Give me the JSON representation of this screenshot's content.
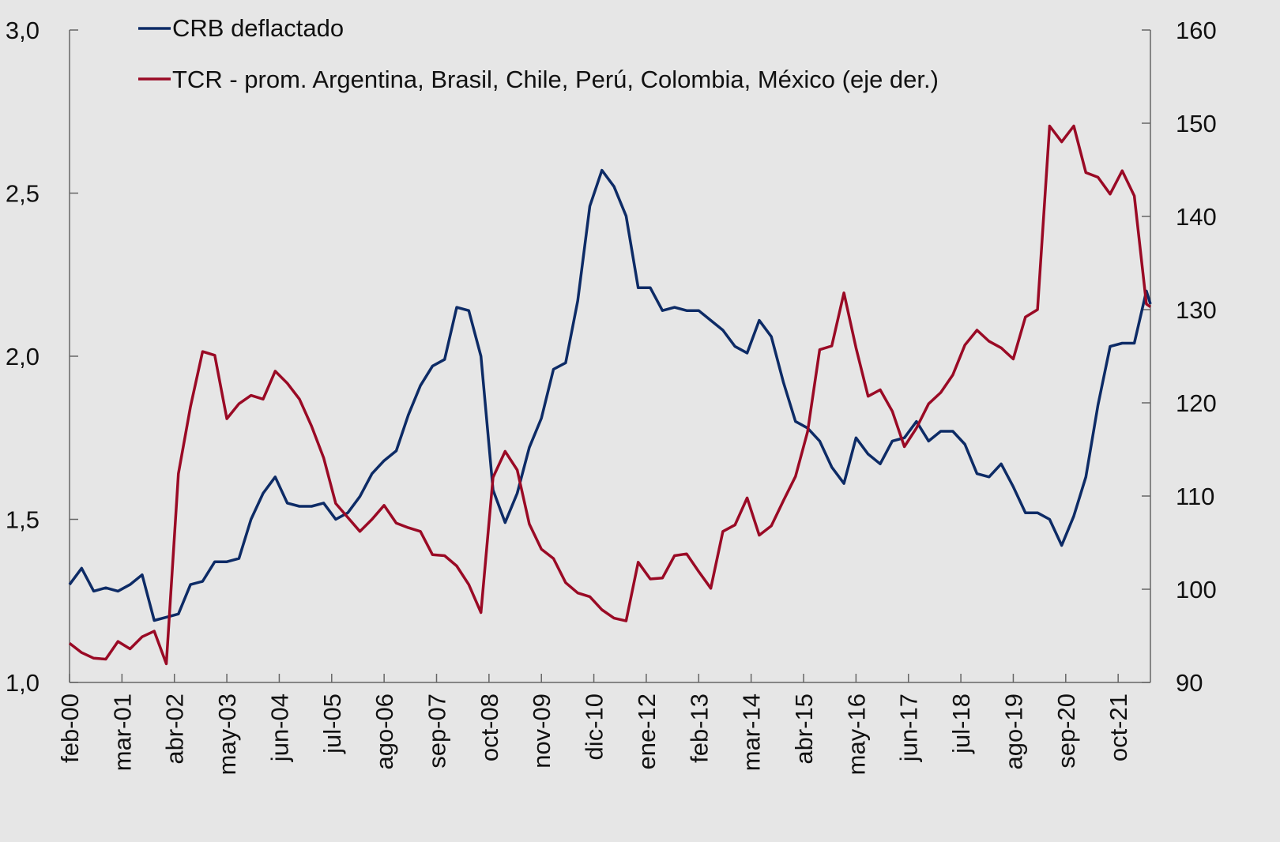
{
  "chart_data": {
    "type": "line",
    "title": "",
    "xlabel": "",
    "ylabel": "",
    "y2label": "",
    "xlim": [
      "2000-02",
      "2022-06"
    ],
    "ylim": [
      1.0,
      3.0
    ],
    "y2lim": [
      90,
      160
    ],
    "grid": false,
    "legend_position": "top-left",
    "x_tick_labels": [
      "feb-00",
      "mar-01",
      "abr-02",
      "may-03",
      "jun-04",
      "jul-05",
      "ago-06",
      "sep-07",
      "oct-08",
      "nov-09",
      "dic-10",
      "ene-12",
      "feb-13",
      "mar-14",
      "abr-15",
      "may-16",
      "jun-17",
      "jul-18",
      "ago-19",
      "sep-20",
      "oct-21"
    ],
    "y_tick_labels": [
      "1,0",
      "1,5",
      "2,0",
      "2,5",
      "3,0"
    ],
    "y_ticks": [
      1.0,
      1.5,
      2.0,
      2.5,
      3.0
    ],
    "y2_tick_labels": [
      "90",
      "100",
      "110",
      "120",
      "130",
      "140",
      "150",
      "160"
    ],
    "y2_ticks": [
      90,
      100,
      110,
      120,
      130,
      140,
      150,
      160
    ],
    "x": [
      "2000-02",
      "2000-05",
      "2000-08",
      "2000-11",
      "2001-02",
      "2001-05",
      "2001-08",
      "2001-11",
      "2002-02",
      "2002-05",
      "2002-08",
      "2002-11",
      "2003-02",
      "2003-05",
      "2003-08",
      "2003-11",
      "2004-02",
      "2004-05",
      "2004-08",
      "2004-11",
      "2005-02",
      "2005-05",
      "2005-08",
      "2005-11",
      "2006-02",
      "2006-05",
      "2006-08",
      "2006-11",
      "2007-02",
      "2007-05",
      "2007-08",
      "2007-11",
      "2008-02",
      "2008-05",
      "2008-08",
      "2008-11",
      "2009-02",
      "2009-05",
      "2009-08",
      "2009-11",
      "2010-02",
      "2010-05",
      "2010-08",
      "2010-11",
      "2011-02",
      "2011-05",
      "2011-08",
      "2011-11",
      "2012-02",
      "2012-05",
      "2012-08",
      "2012-11",
      "2013-02",
      "2013-05",
      "2013-08",
      "2013-11",
      "2014-02",
      "2014-05",
      "2014-08",
      "2014-11",
      "2015-02",
      "2015-05",
      "2015-08",
      "2015-11",
      "2016-02",
      "2016-05",
      "2016-08",
      "2016-11",
      "2017-02",
      "2017-05",
      "2017-08",
      "2017-11",
      "2018-02",
      "2018-05",
      "2018-08",
      "2018-11",
      "2019-02",
      "2019-05",
      "2019-08",
      "2019-11",
      "2020-02",
      "2020-05",
      "2020-08",
      "2020-11",
      "2021-02",
      "2021-05",
      "2021-08",
      "2021-11",
      "2022-02",
      "2022-05",
      "2022-06"
    ],
    "series": [
      {
        "name": "CRB deflactado",
        "axis": "left",
        "color": "#0d2b66",
        "values": [
          1.3,
          1.35,
          1.28,
          1.29,
          1.28,
          1.3,
          1.33,
          1.19,
          1.2,
          1.21,
          1.3,
          1.31,
          1.37,
          1.37,
          1.38,
          1.5,
          1.58,
          1.63,
          1.55,
          1.54,
          1.54,
          1.55,
          1.5,
          1.52,
          1.57,
          1.64,
          1.68,
          1.71,
          1.82,
          1.91,
          1.97,
          1.99,
          2.15,
          2.14,
          2.0,
          1.59,
          1.49,
          1.58,
          1.72,
          1.81,
          1.96,
          1.98,
          2.17,
          2.46,
          2.57,
          2.52,
          2.43,
          2.21,
          2.21,
          2.14,
          2.15,
          2.14,
          2.14,
          2.11,
          2.08,
          2.03,
          2.01,
          2.11,
          2.06,
          1.92,
          1.8,
          1.78,
          1.74,
          1.66,
          1.61,
          1.75,
          1.7,
          1.67,
          1.74,
          1.75,
          1.8,
          1.74,
          1.77,
          1.77,
          1.73,
          1.64,
          1.63,
          1.67,
          1.6,
          1.52,
          1.52,
          1.5,
          1.42,
          1.51,
          1.63,
          1.85,
          2.03,
          2.04,
          2.04,
          2.2,
          2.16
        ]
      },
      {
        "name": "TCR - prom. Argentina, Brasil, Chile, Perú, Colombia, México (eje der.)",
        "axis": "right",
        "color": "#9a0a25",
        "values": [
          94.2,
          93.2,
          92.6,
          92.5,
          94.4,
          93.6,
          94.9,
          95.5,
          92.0,
          112.4,
          119.6,
          125.5,
          125.1,
          118.3,
          119.9,
          120.8,
          120.4,
          123.4,
          122.1,
          120.4,
          117.5,
          114.1,
          109.2,
          107.7,
          106.2,
          107.5,
          109.0,
          107.1,
          106.6,
          106.2,
          103.7,
          103.6,
          102.5,
          100.5,
          97.5,
          112.0,
          114.8,
          112.8,
          107.0,
          104.3,
          103.3,
          100.7,
          99.6,
          99.2,
          97.8,
          96.9,
          96.6,
          102.9,
          101.1,
          101.2,
          103.6,
          103.8,
          101.9,
          100.1,
          106.2,
          106.9,
          109.8,
          105.8,
          106.8,
          109.5,
          112.1,
          116.9,
          125.7,
          126.1,
          131.8,
          125.9,
          120.7,
          121.4,
          119.1,
          115.3,
          117.3,
          119.9,
          121.1,
          123.0,
          126.2,
          127.8,
          126.6,
          125.9,
          124.7,
          129.2,
          130.0,
          149.7,
          148.0,
          149.7,
          144.7,
          144.2,
          142.4,
          144.9,
          142.2,
          130.6,
          130.3
        ]
      }
    ]
  }
}
